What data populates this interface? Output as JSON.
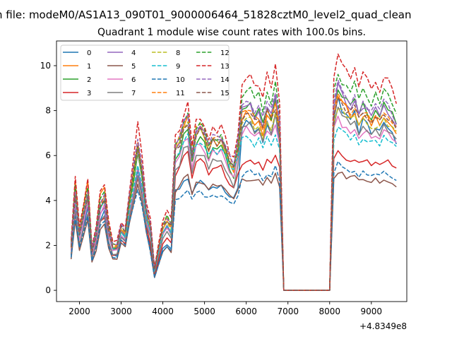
{
  "figure": {
    "suptitle": "n file: modeM0/AS1A13_090T01_9000006464_51828cztM0_level2_quad_clean",
    "title": "Quadrant 1 module wise count rates with 100.0s bins.",
    "x_offset_label": "+4.8349e8"
  },
  "chart_data": {
    "type": "line",
    "title": "Quadrant 1 module wise count rates with 100.0s bins.",
    "xlabel": "",
    "ylabel": "",
    "xlim": [
      1450,
      9850
    ],
    "ylim": [
      -0.5,
      11.1
    ],
    "xticks": [
      2000,
      3000,
      4000,
      5000,
      6000,
      7000,
      8000,
      9000
    ],
    "yticks": [
      0,
      2,
      4,
      6,
      8,
      10
    ],
    "legend_position": "upper-left",
    "grid": false,
    "x": [
      1800,
      1900,
      2000,
      2100,
      2200,
      2300,
      2400,
      2500,
      2600,
      2700,
      2800,
      2900,
      3000,
      3100,
      3200,
      3300,
      3400,
      3500,
      3600,
      3700,
      3800,
      3900,
      4000,
      4100,
      4200,
      4300,
      4400,
      4500,
      4600,
      4700,
      4800,
      4900,
      5000,
      5100,
      5200,
      5300,
      5400,
      5500,
      5600,
      5700,
      5800,
      5900,
      6000,
      6100,
      6200,
      6300,
      6400,
      6500,
      6600,
      6700,
      6800,
      6900,
      7000,
      7100,
      7200,
      7300,
      7400,
      7500,
      7600,
      7700,
      7800,
      7900,
      8000,
      8100,
      8200,
      8300,
      8400,
      8500,
      8600,
      8700,
      8800,
      8900,
      9000,
      9100,
      9200,
      9300,
      9400,
      9500,
      9600
    ],
    "base_profile": [
      0.3,
      0.95,
      0.45,
      0.7,
      0.95,
      0.25,
      0.45,
      0.8,
      0.9,
      0.5,
      0.3,
      0.3,
      0.1,
      0.05,
      0.35,
      0.6,
      0.85,
      0.6,
      0.25,
      0.4,
      0.1,
      0.25,
      0.4,
      0.45,
      0.4,
      0.5,
      0.6,
      0.85,
      0.95,
      0.4,
      0.75,
      0.8,
      0.7,
      0.5,
      0.65,
      0.6,
      0.65,
      0.5,
      0.3,
      0.2,
      0.55,
      0.75,
      0.8,
      0.8,
      0.7,
      0.75,
      0.6,
      0.8,
      0.7,
      0.9,
      0.6,
      0.0,
      0.0,
      0.0,
      0.0,
      0.0,
      0.0,
      0.0,
      0.0,
      0.0,
      0.0,
      0.0,
      0.0,
      0.8,
      1.0,
      0.9,
      0.85,
      0.8,
      0.85,
      0.7,
      0.8,
      0.75,
      0.7,
      0.75,
      0.7,
      0.8,
      0.75,
      0.7,
      0.6
    ],
    "series": [
      {
        "name": "0",
        "color": "#1f77b4",
        "dashed": false,
        "low": [
          0.6,
          2.0,
          0.2,
          3.9,
          3.4
        ],
        "high": [
          3.8,
          6.0,
          4.3,
          5.0,
          8.6
        ],
        "seed": 1
      },
      {
        "name": "1",
        "color": "#ff7f0e",
        "dashed": false,
        "low": [
          0.7,
          2.2,
          0.3,
          4.7,
          4.4
        ],
        "high": [
          5.1,
          6.8,
          6.4,
          7.8,
          8.7
        ],
        "seed": 2
      },
      {
        "name": "2",
        "color": "#2ca02c",
        "dashed": false,
        "low": [
          0.7,
          2.1,
          0.3,
          4.5,
          4.9
        ],
        "high": [
          4.4,
          6.8,
          5.8,
          7.3,
          9.0
        ],
        "seed": 3
      },
      {
        "name": "3",
        "color": "#d62728",
        "dashed": false,
        "low": [
          0.7,
          1.9,
          0.2,
          4.0,
          4.2
        ],
        "high": [
          3.6,
          5.6,
          5.0,
          6.3,
          6.2
        ],
        "seed": 4
      },
      {
        "name": "4",
        "color": "#9467bd",
        "dashed": false,
        "low": [
          0.8,
          2.2,
          0.3,
          4.7,
          4.6
        ],
        "high": [
          4.1,
          6.9,
          6.1,
          8.0,
          9.1
        ],
        "seed": 5
      },
      {
        "name": "5",
        "color": "#8c564b",
        "dashed": false,
        "low": [
          0.6,
          1.8,
          0.2,
          3.7,
          3.7
        ],
        "high": [
          3.2,
          5.2,
          4.0,
          5.2,
          5.3
        ],
        "seed": 6
      },
      {
        "name": "6",
        "color": "#e377c2",
        "dashed": false,
        "low": [
          0.8,
          2.1,
          0.3,
          4.5,
          4.9
        ],
        "high": [
          4.1,
          6.1,
          5.9,
          7.0,
          7.7
        ],
        "seed": 7
      },
      {
        "name": "7",
        "color": "#7f7f7f",
        "dashed": false,
        "low": [
          0.7,
          2.0,
          0.3,
          4.2,
          4.4
        ],
        "high": [
          3.6,
          5.7,
          5.4,
          6.6,
          8.1
        ],
        "seed": 8
      },
      {
        "name": "8",
        "color": "#bcbd22",
        "dashed": true,
        "low": [
          0.8,
          2.3,
          0.3,
          4.9,
          5.0
        ],
        "high": [
          4.6,
          6.9,
          6.4,
          7.6,
          8.2
        ],
        "seed": 9
      },
      {
        "name": "9",
        "color": "#17becf",
        "dashed": true,
        "low": [
          0.8,
          2.2,
          0.3,
          4.8,
          4.7
        ],
        "high": [
          4.4,
          6.2,
          6.1,
          7.1,
          7.3
        ],
        "seed": 10
      },
      {
        "name": "10",
        "color": "#1f77b4",
        "dashed": true,
        "low": [
          0.6,
          1.9,
          0.2,
          3.7,
          3.8
        ],
        "high": [
          3.4,
          5.0,
          4.0,
          4.5,
          5.6
        ],
        "seed": 11
      },
      {
        "name": "11",
        "color": "#ff7f0e",
        "dashed": true,
        "low": [
          0.8,
          2.3,
          0.3,
          5.0,
          5.0
        ],
        "high": [
          4.6,
          7.4,
          6.9,
          7.9,
          8.7
        ],
        "seed": 12
      },
      {
        "name": "12",
        "color": "#2ca02c",
        "dashed": true,
        "low": [
          0.8,
          2.4,
          0.3,
          4.8,
          5.1
        ],
        "high": [
          4.9,
          7.0,
          6.9,
          8.0,
          9.8
        ],
        "seed": 13
      },
      {
        "name": "13",
        "color": "#d62728",
        "dashed": true,
        "low": [
          0.9,
          2.5,
          0.3,
          5.2,
          5.5
        ],
        "high": [
          5.2,
          8.2,
          7.5,
          8.4,
          10.5
        ],
        "seed": 14
      },
      {
        "name": "14",
        "color": "#9467bd",
        "dashed": true,
        "low": [
          0.9,
          2.4,
          0.3,
          5.1,
          5.1
        ],
        "high": [
          4.6,
          7.6,
          6.8,
          7.9,
          9.2
        ],
        "seed": 15
      },
      {
        "name": "15",
        "color": "#8c564b",
        "dashed": true,
        "low": [
          0.8,
          2.4,
          0.3,
          4.9,
          5.0
        ],
        "high": [
          4.4,
          7.3,
          6.6,
          7.6,
          8.6
        ],
        "seed": 16
      }
    ]
  }
}
